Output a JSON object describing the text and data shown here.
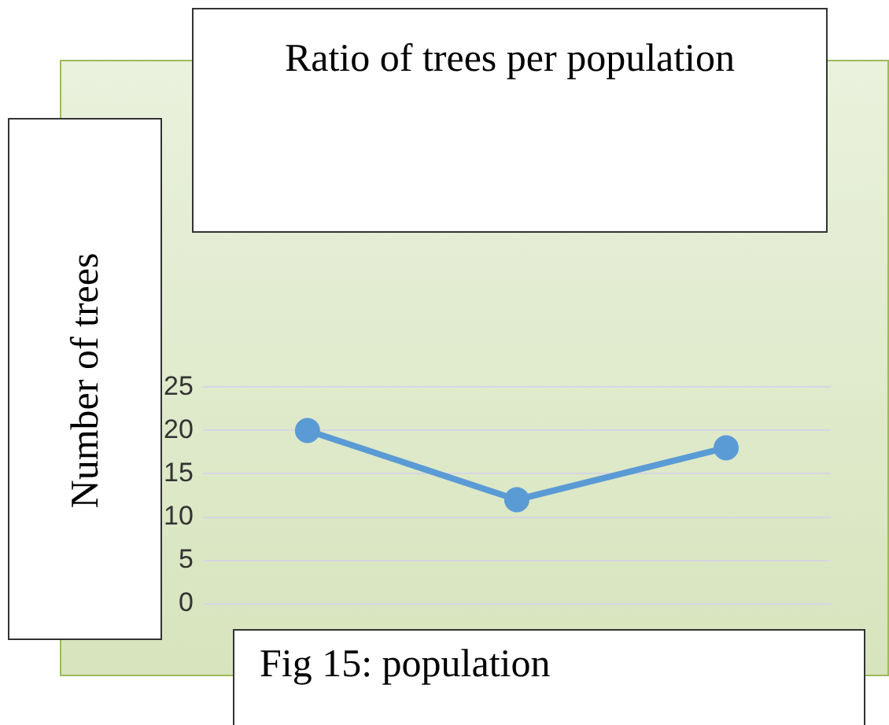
{
  "chart_data": {
    "type": "line",
    "title": "Ratio of trees per population",
    "xlabel": "Fig 15: population",
    "ylabel": "Number of trees",
    "categories": [
      null,
      null,
      null
    ],
    "series": [
      {
        "color": "#5b9bd5",
        "values": [
          20,
          12,
          18
        ]
      }
    ],
    "ylim": [
      0,
      25
    ],
    "yticks": [
      0,
      5,
      10,
      15,
      20,
      25
    ],
    "grid": "y",
    "legend": false,
    "marker": "circle",
    "line_style": "solid",
    "tick_labels": "y"
  }
}
